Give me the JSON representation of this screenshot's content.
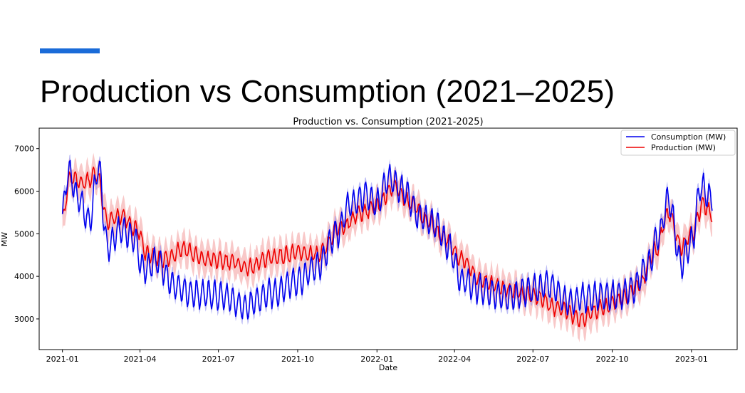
{
  "slide": {
    "title": "Production vs Consumption (2021–2025)",
    "accent_color": "#1a6bd8"
  },
  "chart_data": {
    "type": "line",
    "title": "Production vs. Consumption (2021-2025)",
    "xlabel": "Date",
    "ylabel": "MW",
    "x_range": [
      "2020-12-05",
      "2023-02-23"
    ],
    "ylim": [
      2280,
      7480
    ],
    "x_ticks": [
      "2021-01",
      "2021-04",
      "2021-07",
      "2021-10",
      "2022-01",
      "2022-04",
      "2022-07",
      "2022-10",
      "2023-01"
    ],
    "y_ticks": [
      3000,
      4000,
      5000,
      6000,
      7000
    ],
    "grid": false,
    "legend": "upper right",
    "weekly_amplitude": {
      "Consumption (MW)": 320,
      "Production (MW)": 170
    },
    "band_halfwidth": {
      "Consumption (MW)": 130,
      "Production (MW)": 330
    },
    "series": [
      {
        "name": "Consumption (MW)",
        "color": "#0000ee",
        "band_color": "#9090ee",
        "points": [
          [
            "2021-01-01",
            5500
          ],
          [
            "2021-01-08",
            6450
          ],
          [
            "2021-01-20",
            5800
          ],
          [
            "2021-02-01",
            5300
          ],
          [
            "2021-02-12",
            6550
          ],
          [
            "2021-02-22",
            4700
          ],
          [
            "2021-03-10",
            5100
          ],
          [
            "2021-03-25",
            4900
          ],
          [
            "2021-04-05",
            4150
          ],
          [
            "2021-04-20",
            4350
          ],
          [
            "2021-05-10",
            3800
          ],
          [
            "2021-06-01",
            3600
          ],
          [
            "2021-07-01",
            3550
          ],
          [
            "2021-08-01",
            3300
          ],
          [
            "2021-09-01",
            3600
          ],
          [
            "2021-10-01",
            3900
          ],
          [
            "2021-10-25",
            4250
          ],
          [
            "2021-11-15",
            5000
          ],
          [
            "2021-12-01",
            5700
          ],
          [
            "2021-12-20",
            5900
          ],
          [
            "2022-01-01",
            5700
          ],
          [
            "2022-01-15",
            6300
          ],
          [
            "2022-02-01",
            6000
          ],
          [
            "2022-02-20",
            5400
          ],
          [
            "2022-03-10",
            5200
          ],
          [
            "2022-03-25",
            4700
          ],
          [
            "2022-04-10",
            3900
          ],
          [
            "2022-05-01",
            3700
          ],
          [
            "2022-06-01",
            3500
          ],
          [
            "2022-07-01",
            3700
          ],
          [
            "2022-07-20",
            3800
          ],
          [
            "2022-08-10",
            3400
          ],
          [
            "2022-09-01",
            3500
          ],
          [
            "2022-09-20",
            3550
          ],
          [
            "2022-10-10",
            3550
          ],
          [
            "2022-10-25",
            3700
          ],
          [
            "2022-11-10",
            4200
          ],
          [
            "2022-11-25",
            5000
          ],
          [
            "2022-12-05",
            5800
          ],
          [
            "2022-12-20",
            4300
          ],
          [
            "2023-01-01",
            4800
          ],
          [
            "2023-01-12",
            6100
          ],
          [
            "2023-01-25",
            5800
          ]
        ]
      },
      {
        "name": "Production (MW)",
        "color": "#ee0000",
        "band_color": "#f4a4a4",
        "points": [
          [
            "2021-01-01",
            5400
          ],
          [
            "2021-01-10",
            6300
          ],
          [
            "2021-01-25",
            6200
          ],
          [
            "2021-02-10",
            6400
          ],
          [
            "2021-02-22",
            5300
          ],
          [
            "2021-03-10",
            5400
          ],
          [
            "2021-03-28",
            5100
          ],
          [
            "2021-04-10",
            4500
          ],
          [
            "2021-05-01",
            4400
          ],
          [
            "2021-05-20",
            4650
          ],
          [
            "2021-06-15",
            4400
          ],
          [
            "2021-07-15",
            4350
          ],
          [
            "2021-08-05",
            4200
          ],
          [
            "2021-09-01",
            4450
          ],
          [
            "2021-10-01",
            4550
          ],
          [
            "2021-10-25",
            4500
          ],
          [
            "2021-11-20",
            5150
          ],
          [
            "2021-12-15",
            5500
          ],
          [
            "2022-01-01",
            5650
          ],
          [
            "2022-01-20",
            6100
          ],
          [
            "2022-02-10",
            5700
          ],
          [
            "2022-03-01",
            5300
          ],
          [
            "2022-03-20",
            4900
          ],
          [
            "2022-04-10",
            4400
          ],
          [
            "2022-05-01",
            3900
          ],
          [
            "2022-06-01",
            3700
          ],
          [
            "2022-07-01",
            3550
          ],
          [
            "2022-08-01",
            3250
          ],
          [
            "2022-08-25",
            3000
          ],
          [
            "2022-09-20",
            3250
          ],
          [
            "2022-10-15",
            3500
          ],
          [
            "2022-11-01",
            3800
          ],
          [
            "2022-11-20",
            4600
          ],
          [
            "2022-12-05",
            5500
          ],
          [
            "2022-12-20",
            4700
          ],
          [
            "2023-01-01",
            5000
          ],
          [
            "2023-01-15",
            5700
          ],
          [
            "2023-01-25",
            5400
          ]
        ]
      }
    ]
  }
}
